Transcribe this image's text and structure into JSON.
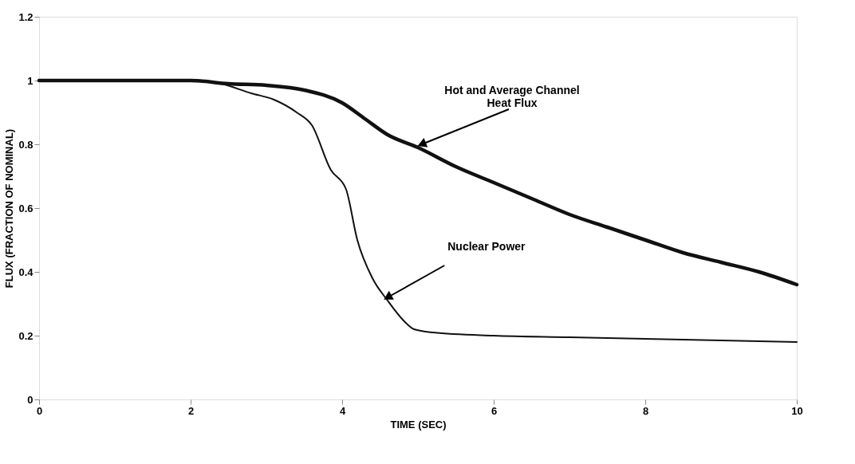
{
  "chart_data": {
    "type": "line",
    "xlabel": "TIME (SEC)",
    "ylabel": "FLUX (FRACTION OF NOMINAL)",
    "xlim": [
      0,
      10
    ],
    "xticks": [
      0,
      2,
      4,
      6,
      8,
      10
    ],
    "ylim": [
      0,
      1.2
    ],
    "yticks": [
      0,
      0.2,
      0.4,
      0.6,
      0.8,
      1,
      1.2
    ],
    "grid": false,
    "marker": "none",
    "line_style": "solid",
    "series": [
      {
        "color": "#111111",
        "x": [
          0,
          1,
          2,
          2.5,
          3,
          3.5,
          4,
          4.3,
          4.6,
          5,
          5.5,
          6,
          6.5,
          7,
          7.5,
          8,
          8.5,
          9,
          9.5,
          10
        ],
        "values": [
          1,
          1,
          1,
          0.99,
          0.985,
          0.97,
          0.93,
          0.88,
          0.83,
          0.79,
          0.73,
          0.68,
          0.63,
          0.58,
          0.54,
          0.5,
          0.46,
          0.43,
          0.4,
          0.36
        ]
      },
      {
        "color": "#111111",
        "x": [
          0,
          1,
          2,
          2.4,
          2.8,
          3.1,
          3.4,
          3.6,
          3.85,
          4.05,
          4.2,
          4.4,
          4.6,
          4.8,
          4.95,
          5.2,
          6,
          7,
          8,
          9,
          10
        ],
        "values": [
          1,
          1,
          1,
          0.99,
          0.96,
          0.94,
          0.9,
          0.86,
          0.72,
          0.66,
          0.5,
          0.38,
          0.31,
          0.25,
          0.22,
          0.21,
          0.2,
          0.195,
          0.19,
          0.185,
          0.18
        ]
      }
    ],
    "annotations": [
      {
        "text": "Hot and Average Channel\nHeat Flux",
        "x": 5.05,
        "y": 0.8
      },
      {
        "text": "Nuclear Power",
        "x": 4.6,
        "y": 0.32
      }
    ]
  }
}
